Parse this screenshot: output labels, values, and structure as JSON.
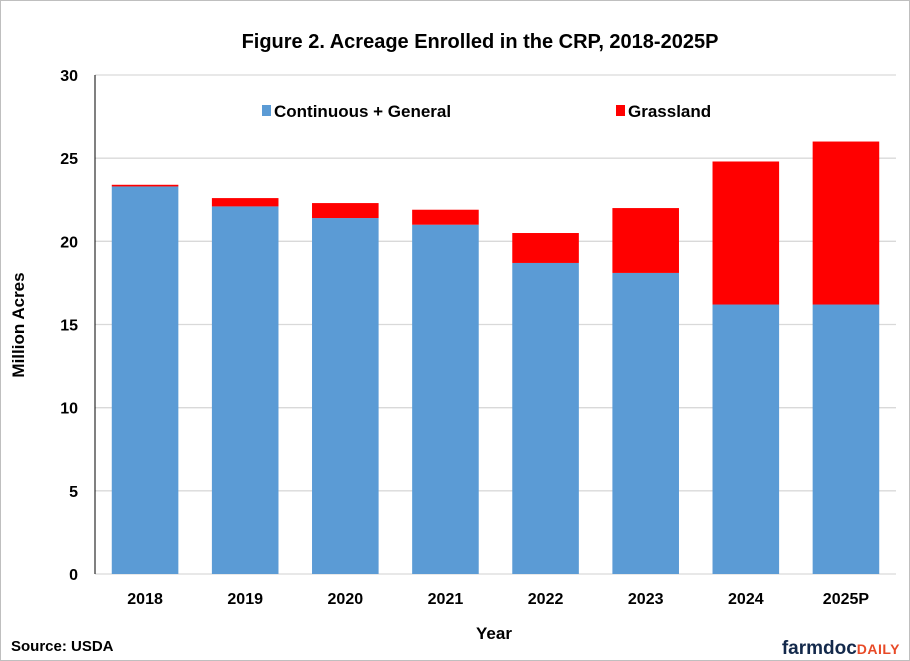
{
  "chart_data": {
    "type": "bar",
    "stacked": true,
    "title": "Figure 2. Acreage Enrolled in the CRP, 2018-2025P",
    "xlabel": "Year",
    "ylabel": "Million Acres",
    "ylim": [
      0,
      30
    ],
    "yticks": [
      0,
      5,
      10,
      15,
      20,
      25,
      30
    ],
    "ytick_labels": [
      "0",
      "5",
      "10",
      "15",
      "20",
      "25",
      "30"
    ],
    "grid": true,
    "legend_position": "top-center",
    "categories": [
      "2018",
      "2019",
      "2020",
      "2021",
      "2022",
      "2023",
      "2024",
      "2025P"
    ],
    "series": [
      {
        "name": "Continuous + General",
        "color": "#5b9bd5",
        "values": [
          23.3,
          22.1,
          21.4,
          21.0,
          18.7,
          18.1,
          16.2,
          16.2
        ]
      },
      {
        "name": "Grassland",
        "color": "#ff0000",
        "values": [
          0.1,
          0.5,
          0.9,
          0.9,
          1.8,
          3.9,
          8.6,
          9.8
        ]
      }
    ]
  },
  "footer": {
    "source": "Source: USDA",
    "brand_main": "farmdoc",
    "brand_accent": "DAILY"
  },
  "colors": {
    "grid": "#d9d9d9",
    "axis": "#000000",
    "brand_dark": "#13294b",
    "brand_accent": "#e84a27"
  }
}
